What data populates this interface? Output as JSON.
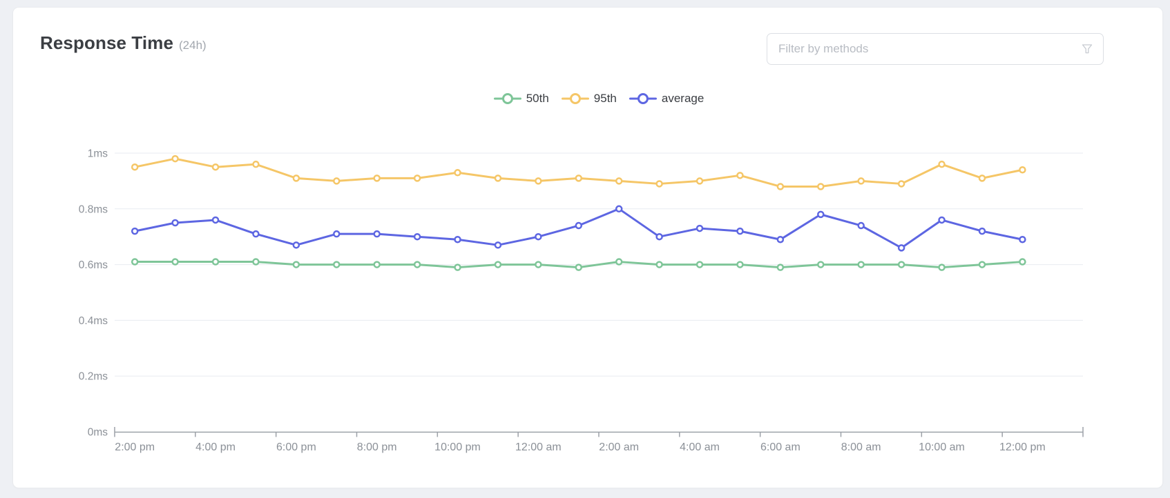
{
  "header": {
    "title": "Response Time",
    "range": "(24h)"
  },
  "filter": {
    "placeholder": "Filter by methods",
    "icon": "funnel-icon"
  },
  "colors": {
    "page_bg": "#EEF0F4",
    "card_bg": "#FFFFFF",
    "card_border": "#E9EBEE",
    "grid": "#E8EBF1",
    "axis": "#9CA1A8",
    "axis_text": "#8B9097",
    "legend_text": "#3A3D42",
    "title_text": "#3B3E43",
    "subtitle_text": "#A2A7AE",
    "series_50th": "#7EC598",
    "series_95th": "#F5C667",
    "series_average": "#5D66E2"
  },
  "chart_data": {
    "type": "line",
    "title": "Response Time (24h)",
    "unit": "ms",
    "grid": true,
    "legend_position": "top-center",
    "ylim": [
      0,
      1
    ],
    "x": [
      "2:00 pm",
      "3:00 pm",
      "4:00 pm",
      "5:00 pm",
      "6:00 pm",
      "7:00 pm",
      "8:00 pm",
      "9:00 pm",
      "10:00 pm",
      "11:00 pm",
      "12:00 am",
      "1:00 am",
      "2:00 am",
      "3:00 am",
      "4:00 am",
      "5:00 am",
      "6:00 am",
      "7:00 am",
      "8:00 am",
      "9:00 am",
      "10:00 am",
      "11:00 am",
      "12:00 pm"
    ],
    "x_tick_step": 2,
    "x_tick_labels": [
      "2:00 pm",
      "4:00 pm",
      "6:00 pm",
      "8:00 pm",
      "10:00 pm",
      "12:00 am",
      "2:00 am",
      "4:00 am",
      "6:00 am",
      "8:00 am",
      "10:00 am",
      "12:00 pm"
    ],
    "y_ticks": [
      {
        "value": 0,
        "label": "0ms"
      },
      {
        "value": 0.2,
        "label": "0.2ms"
      },
      {
        "value": 0.4,
        "label": "0.4ms"
      },
      {
        "value": 0.6,
        "label": "0.6ms"
      },
      {
        "value": 0.8,
        "label": "0.8ms"
      },
      {
        "value": 1,
        "label": "1ms"
      }
    ],
    "series": [
      {
        "name": "50th",
        "color": "#7EC598",
        "values": [
          0.61,
          0.61,
          0.61,
          0.61,
          0.6,
          0.6,
          0.6,
          0.6,
          0.59,
          0.6,
          0.6,
          0.59,
          0.61,
          0.6,
          0.6,
          0.6,
          0.59,
          0.6,
          0.6,
          0.6,
          0.59,
          0.6,
          0.61
        ]
      },
      {
        "name": "95th",
        "color": "#F5C667",
        "values": [
          0.95,
          0.98,
          0.95,
          0.96,
          0.91,
          0.9,
          0.91,
          0.91,
          0.93,
          0.91,
          0.9,
          0.91,
          0.9,
          0.89,
          0.9,
          0.92,
          0.88,
          0.88,
          0.9,
          0.89,
          0.96,
          0.91,
          0.94
        ]
      },
      {
        "name": "average",
        "color": "#5D66E2",
        "values": [
          0.72,
          0.75,
          0.76,
          0.71,
          0.67,
          0.71,
          0.71,
          0.7,
          0.69,
          0.67,
          0.7,
          0.74,
          0.8,
          0.7,
          0.73,
          0.72,
          0.69,
          0.78,
          0.74,
          0.66,
          0.76,
          0.72,
          0.69
        ]
      }
    ]
  }
}
